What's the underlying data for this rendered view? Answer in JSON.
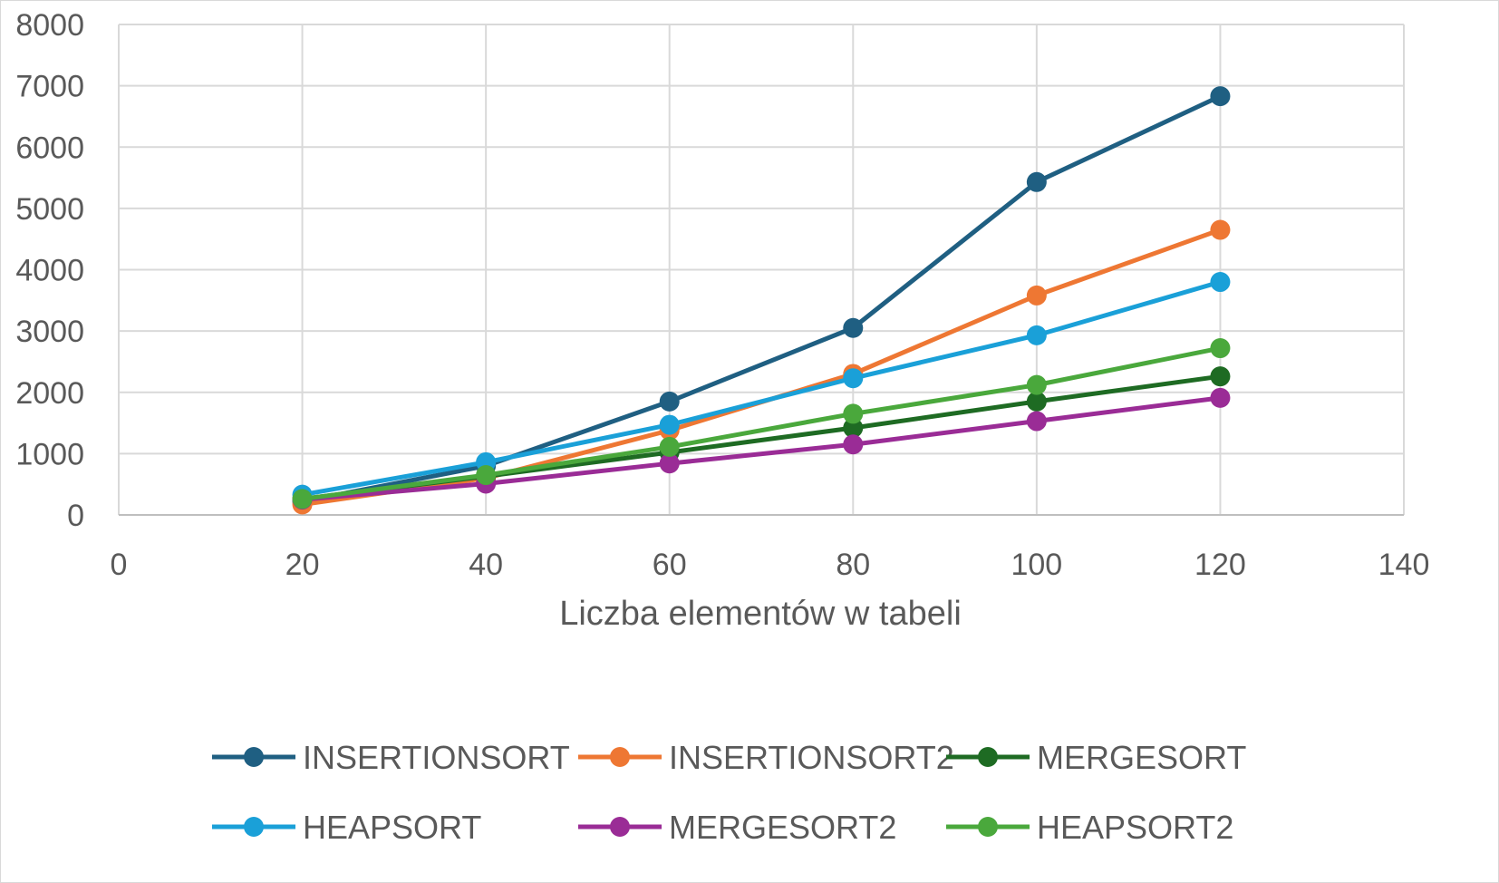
{
  "chart_data": {
    "type": "line",
    "title": "",
    "xlabel": "Liczba elementów w tabeli",
    "ylabel": "",
    "xlim": [
      0,
      140
    ],
    "ylim": [
      0,
      8000
    ],
    "x_ticks": [
      "0",
      "20",
      "40",
      "60",
      "80",
      "100",
      "120",
      "140"
    ],
    "y_ticks": [
      "0",
      "1000",
      "2000",
      "3000",
      "4000",
      "5000",
      "6000",
      "7000",
      "8000"
    ],
    "grid": true,
    "legend_position": "bottom",
    "x": [
      20,
      40,
      60,
      80,
      100,
      120
    ],
    "series": [
      {
        "name": "INSERTIONSORT",
        "color": "#1f5f82",
        "values": [
          220,
          800,
          1850,
          3050,
          5430,
          6830
        ]
      },
      {
        "name": "INSERTIONSORT2",
        "color": "#ee7733",
        "values": [
          170,
          600,
          1380,
          2300,
          3580,
          4650
        ]
      },
      {
        "name": "MERGESORT",
        "color": "#1e6b23",
        "values": [
          260,
          630,
          1020,
          1420,
          1850,
          2260
        ]
      },
      {
        "name": "HEAPSORT",
        "color": "#1aa0d8",
        "values": [
          330,
          860,
          1470,
          2230,
          2930,
          3800
        ]
      },
      {
        "name": "MERGESORT2",
        "color": "#9a2c96",
        "values": [
          250,
          510,
          840,
          1150,
          1530,
          1910
        ]
      },
      {
        "name": "HEAPSORT2",
        "color": "#4aa83c",
        "values": [
          260,
          650,
          1110,
          1650,
          2120,
          2720
        ]
      }
    ]
  }
}
